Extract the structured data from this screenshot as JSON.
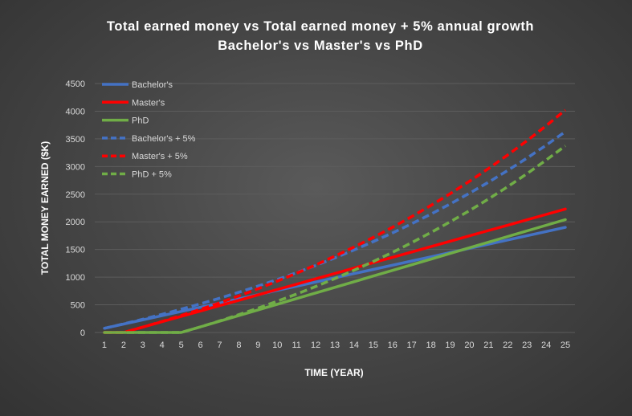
{
  "chart_data": {
    "type": "line",
    "title": "Total earned money vs Total earned money + 5% annual growth",
    "subtitle": "Bachelor's vs Master's vs PhD",
    "xlabel": "TIME (YEAR)",
    "ylabel": "TOTAL MONEY EARNED ($K)",
    "x": [
      1,
      2,
      3,
      4,
      5,
      6,
      7,
      8,
      9,
      10,
      11,
      12,
      13,
      14,
      15,
      16,
      17,
      18,
      19,
      20,
      21,
      22,
      23,
      24,
      25
    ],
    "ylim": [
      0,
      4500
    ],
    "yticks": [
      0,
      500,
      1000,
      1500,
      2000,
      2500,
      3000,
      3500,
      4000,
      4500
    ],
    "grid": true,
    "legend_position": "top-left",
    "series": [
      {
        "name": "Bachelor's",
        "color": "#4472c4",
        "dash": false,
        "values": [
          76,
          152,
          228,
          304,
          380,
          456,
          532,
          608,
          684,
          760,
          836,
          912,
          988,
          1064,
          1140,
          1216,
          1292,
          1368,
          1444,
          1520,
          1596,
          1672,
          1748,
          1824,
          1900
        ]
      },
      {
        "name": "Master's",
        "color": "#ff0000",
        "dash": false,
        "values": [
          0,
          0,
          97,
          194,
          291,
          388,
          485,
          582,
          679,
          776,
          873,
          970,
          1067,
          1164,
          1261,
          1358,
          1455,
          1552,
          1649,
          1746,
          1843,
          1940,
          2037,
          2134,
          2231
        ]
      },
      {
        "name": "PhD",
        "color": "#70ad47",
        "dash": false,
        "values": [
          0,
          0,
          0,
          0,
          0,
          102,
          204,
          306,
          408,
          510,
          612,
          714,
          816,
          918,
          1020,
          1122,
          1224,
          1326,
          1428,
          1530,
          1632,
          1734,
          1836,
          1938,
          2040
        ]
      },
      {
        "name": "Bachelor's + 5%",
        "color": "#4472c4",
        "dash": true,
        "values": [
          76,
          156,
          240,
          328,
          421,
          518,
          620,
          727,
          839,
          957,
          1081,
          1211,
          1348,
          1491,
          1642,
          1800,
          1966,
          2140,
          2323,
          2515,
          2717,
          2929,
          3152,
          3385,
          3630
        ]
      },
      {
        "name": "Master's + 5%",
        "color": "#ff0000",
        "dash": true,
        "values": [
          0,
          0,
          97,
          199,
          306,
          418,
          536,
          660,
          790,
          927,
          1070,
          1221,
          1379,
          1545,
          1719,
          1902,
          2095,
          2296,
          2508,
          2731,
          2964,
          3210,
          3467,
          3737,
          4021
        ]
      },
      {
        "name": "PhD + 5%",
        "color": "#70ad47",
        "dash": true,
        "values": [
          0,
          0,
          0,
          0,
          0,
          102,
          209,
          322,
          440,
          564,
          694,
          831,
          974,
          1125,
          1283,
          1449,
          1624,
          1807,
          2000,
          2201,
          2414,
          2636,
          2870,
          3116,
          3373
        ]
      }
    ]
  }
}
